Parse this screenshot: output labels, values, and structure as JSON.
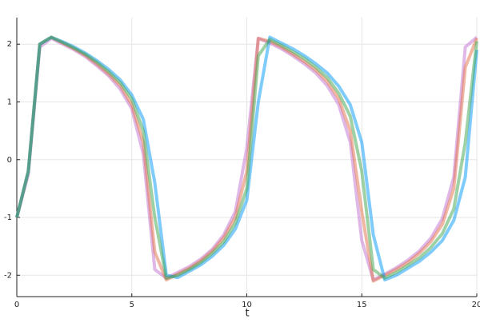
{
  "chart_data": {
    "type": "line",
    "xlabel": "t",
    "x": [
      0,
      0.5,
      1,
      1.5,
      2,
      2.5,
      3,
      3.5,
      4,
      4.5,
      5,
      5.5,
      6,
      6.5,
      7,
      7.5,
      8,
      8.5,
      9,
      9.5,
      10,
      10.5,
      11,
      11.5,
      12,
      12.5,
      13,
      13.5,
      14,
      14.5,
      15,
      15.5,
      16,
      16.5,
      17,
      17.5,
      18,
      18.5,
      19,
      19.5,
      20
    ],
    "series": [
      {
        "color": "#c271d2",
        "values": [
          -1,
          -0.25,
          1.95,
          2.1,
          2.0,
          1.9,
          1.78,
          1.62,
          1.45,
          1.22,
          0.88,
          0.1,
          -1.9,
          -2.05,
          -1.95,
          -1.85,
          -1.72,
          -1.55,
          -1.3,
          -0.9,
          0.2,
          2.1,
          2.02,
          1.92,
          1.8,
          1.66,
          1.5,
          1.28,
          0.95,
          0.3,
          -1.4,
          -2.08,
          -1.98,
          -1.87,
          -1.74,
          -1.58,
          -1.36,
          -1.02,
          -0.3,
          1.95,
          2.12
        ]
      },
      {
        "color": "#e26f46",
        "values": [
          -1,
          -0.2,
          2.0,
          2.12,
          2.02,
          1.92,
          1.8,
          1.65,
          1.48,
          1.28,
          0.95,
          0.3,
          -1.6,
          -2.08,
          -1.98,
          -1.88,
          -1.75,
          -1.58,
          -1.35,
          -1.0,
          -0.2,
          2.1,
          2.05,
          1.95,
          1.83,
          1.7,
          1.55,
          1.35,
          1.05,
          0.5,
          -0.9,
          -2.1,
          -2.0,
          -1.9,
          -1.78,
          -1.62,
          -1.42,
          -1.12,
          -0.5,
          1.6,
          2.1
        ]
      },
      {
        "color": "#009af9",
        "values": [
          -1,
          -0.2,
          2.0,
          2.12,
          2.04,
          1.95,
          1.84,
          1.71,
          1.56,
          1.38,
          1.12,
          0.7,
          -0.4,
          -2.0,
          -2.04,
          -1.93,
          -1.82,
          -1.67,
          -1.48,
          -1.2,
          -0.7,
          1.0,
          2.12,
          2.02,
          1.92,
          1.8,
          1.66,
          1.5,
          1.27,
          0.95,
          0.3,
          -1.3,
          -2.08,
          -2.0,
          -1.88,
          -1.76,
          -1.6,
          -1.4,
          -1.05,
          -0.3,
          1.9
        ]
      },
      {
        "color": "#3da44d",
        "values": [
          -1,
          -0.2,
          2.0,
          2.12,
          2.03,
          1.93,
          1.82,
          1.68,
          1.52,
          1.33,
          1.05,
          0.5,
          -1.0,
          -2.05,
          -2.0,
          -1.9,
          -1.78,
          -1.62,
          -1.42,
          -1.1,
          -0.5,
          1.8,
          2.08,
          1.98,
          1.87,
          1.75,
          1.6,
          1.42,
          1.15,
          0.75,
          -0.2,
          -1.9,
          -2.05,
          -1.95,
          -1.83,
          -1.7,
          -1.52,
          -1.28,
          -0.85,
          0.3,
          2.05
        ]
      }
    ],
    "xlim": [
      0,
      20
    ],
    "xticks": [
      0,
      5,
      10,
      15,
      20
    ],
    "ylim": [
      -2.37,
      2.46
    ],
    "yticks": [
      -2,
      -1,
      0,
      1,
      2
    ],
    "grid": true
  }
}
